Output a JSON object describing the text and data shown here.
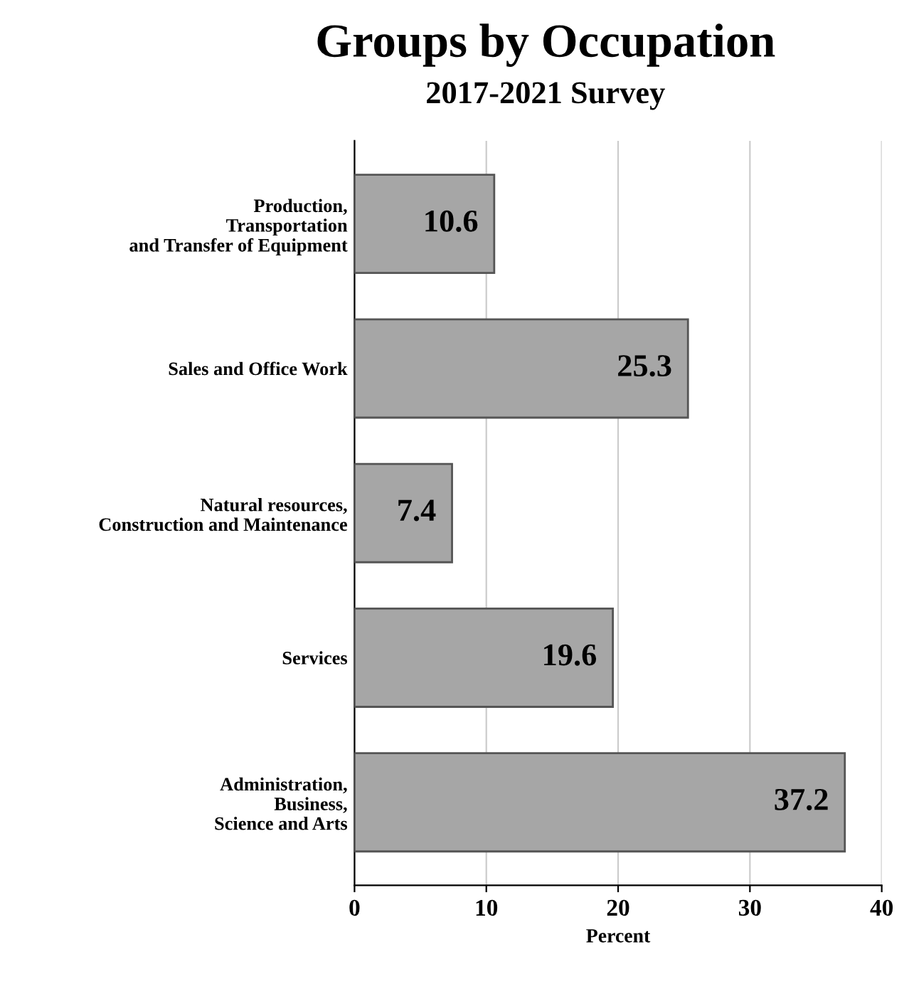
{
  "chart_data": {
    "type": "bar",
    "orientation": "horizontal",
    "title": "Groups by Occupation",
    "subtitle": "2017-2021 Survey",
    "xlabel": "Percent",
    "categories": [
      "Production,\nTransportation\nand Transfer of Equipment",
      "Sales and Office Work",
      "Natural resources,\nConstruction and Maintenance",
      "Services",
      "Administration,\nBusiness,\nScience and Arts"
    ],
    "values": [
      10.6,
      25.3,
      7.4,
      19.6,
      37.2
    ],
    "color": "#a6a6a6",
    "xlim": [
      0,
      40
    ],
    "xticks": [
      0,
      10,
      20,
      30,
      40
    ],
    "grid": "x",
    "data_labels": true
  }
}
